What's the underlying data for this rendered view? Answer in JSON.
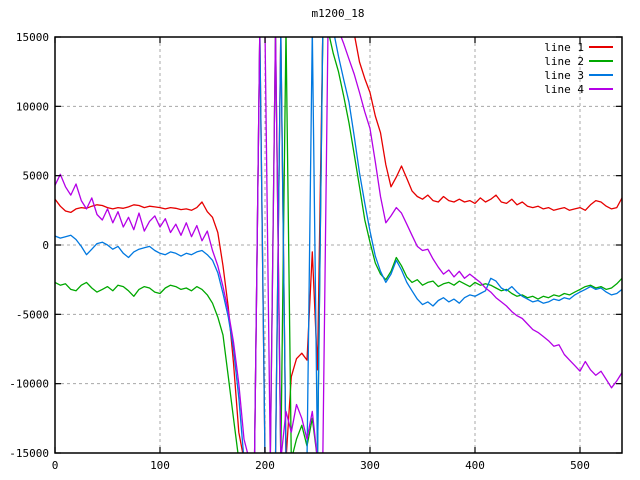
{
  "title": "m1200_18",
  "chart_data": {
    "type": "line",
    "title": "m1200_18",
    "xlabel": "",
    "ylabel": "",
    "x_range": [
      0,
      540
    ],
    "y_range": [
      -15000,
      15000
    ],
    "x_ticks": [
      0,
      100,
      200,
      300,
      400,
      500
    ],
    "y_ticks": [
      -15000,
      -10000,
      -5000,
      0,
      5000,
      10000,
      15000
    ],
    "grid": true,
    "grid_color": "#a8a8a8",
    "border_color": "#000000",
    "legend_position": "top-right-inside",
    "x_start": 0,
    "x_step": 5,
    "series": [
      {
        "name": "line 1",
        "color": "#e60000",
        "values": [
          3300,
          2800,
          2450,
          2350,
          2600,
          2700,
          2650,
          2800,
          2900,
          2850,
          2700,
          2600,
          2700,
          2650,
          2750,
          2900,
          2850,
          2700,
          2800,
          2750,
          2700,
          2600,
          2700,
          2650,
          2550,
          2600,
          2500,
          2700,
          3100,
          2400,
          2000,
          900,
          -1500,
          -4500,
          -8500,
          -13500,
          -15500,
          -15500,
          -15500,
          15500,
          -15500,
          -15500,
          -15500,
          15500,
          -15500,
          -9500,
          -8200,
          -7800,
          -8300,
          -500,
          -9000,
          15500,
          15500,
          15500,
          15500,
          15500,
          15500,
          15200,
          13200,
          12000,
          11000,
          9300,
          8100,
          5800,
          4200,
          4900,
          5700,
          4800,
          3900,
          3500,
          3300,
          3600,
          3200,
          3100,
          3500,
          3200,
          3100,
          3300,
          3100,
          3200,
          3000,
          3400,
          3100,
          3300,
          3600,
          3100,
          3000,
          3300,
          2900,
          3100,
          2800,
          2700,
          2800,
          2600,
          2700,
          2500,
          2600,
          2700,
          2500,
          2600,
          2700,
          2500,
          2900,
          3200,
          3100,
          2800,
          2600,
          2700,
          3400
        ]
      },
      {
        "name": "line 2",
        "color": "#00a800",
        "values": [
          -2700,
          -2900,
          -2800,
          -3200,
          -3300,
          -2900,
          -2700,
          -3100,
          -3400,
          -3200,
          -3000,
          -3300,
          -2900,
          -3000,
          -3300,
          -3700,
          -3200,
          -3000,
          -3100,
          -3400,
          -3500,
          -3100,
          -2900,
          -3000,
          -3200,
          -3100,
          -3300,
          -3000,
          -3200,
          -3600,
          -4200,
          -5200,
          -6500,
          -9500,
          -12500,
          -15500,
          -15500,
          -15500,
          -15500,
          -15500,
          -15500,
          -15500,
          15500,
          -15500,
          15500,
          -15500,
          -14000,
          -13000,
          -14500,
          -12500,
          -15500,
          15500,
          15500,
          13800,
          12500,
          10700,
          8800,
          6500,
          4200,
          1800,
          200,
          -1300,
          -2100,
          -2500,
          -1900,
          -900,
          -1500,
          -2300,
          -2700,
          -2500,
          -2900,
          -2700,
          -2600,
          -3000,
          -2800,
          -2700,
          -2900,
          -2600,
          -2800,
          -3000,
          -2700,
          -2900,
          -2800,
          -2900,
          -3100,
          -3300,
          -3200,
          -3500,
          -3700,
          -3600,
          -3800,
          -3700,
          -3900,
          -3700,
          -3800,
          -3600,
          -3700,
          -3500,
          -3600,
          -3400,
          -3200,
          -3000,
          -2900,
          -3100,
          -3000,
          -3200,
          -3100,
          -2800,
          -2400
        ]
      },
      {
        "name": "line 3",
        "color": "#0078e0",
        "values": [
          650,
          500,
          600,
          700,
          400,
          -100,
          -700,
          -300,
          100,
          200,
          0,
          -300,
          -100,
          -600,
          -900,
          -500,
          -300,
          -200,
          -100,
          -400,
          -600,
          -700,
          -500,
          -600,
          -800,
          -600,
          -700,
          -500,
          -400,
          -700,
          -1100,
          -2000,
          -3500,
          -5200,
          -7500,
          -11000,
          -15500,
          -15500,
          -15500,
          15500,
          -15500,
          -15500,
          -15500,
          15500,
          -15500,
          -15500,
          -15500,
          -15500,
          -15500,
          15500,
          -15500,
          15500,
          15500,
          15500,
          13600,
          11900,
          10300,
          7800,
          5200,
          3000,
          1000,
          -800,
          -1900,
          -2700,
          -2100,
          -1100,
          -1800,
          -2700,
          -3300,
          -3900,
          -4300,
          -4100,
          -4400,
          -4000,
          -3800,
          -4100,
          -3900,
          -4200,
          -3800,
          -3600,
          -3700,
          -3500,
          -3300,
          -2400,
          -2600,
          -3100,
          -3300,
          -3000,
          -3400,
          -3700,
          -3900,
          -4100,
          -4000,
          -4200,
          -4100,
          -3900,
          -4000,
          -3800,
          -3900,
          -3600,
          -3400,
          -3200,
          -3000,
          -3200,
          -3100,
          -3400,
          -3600,
          -3500,
          -3200
        ]
      },
      {
        "name": "line 4",
        "color": "#b400e6",
        "values": [
          4300,
          5100,
          4200,
          3600,
          4400,
          3200,
          2600,
          3400,
          2200,
          1800,
          2600,
          1600,
          2400,
          1300,
          2000,
          1100,
          2300,
          1000,
          1700,
          2100,
          1300,
          1900,
          900,
          1500,
          700,
          1600,
          600,
          1400,
          300,
          1000,
          -400,
          -1500,
          -3000,
          -4800,
          -7000,
          -10000,
          -14000,
          -15500,
          -15500,
          15500,
          15500,
          -15500,
          15500,
          -15500,
          -12000,
          -13500,
          -11500,
          -12500,
          -14000,
          -12000,
          -15500,
          -15500,
          15500,
          15500,
          15500,
          14500,
          13400,
          12300,
          11000,
          9600,
          8400,
          6000,
          3500,
          1600,
          2100,
          2700,
          2300,
          1500,
          700,
          -100,
          -400,
          -300,
          -1000,
          -1600,
          -2100,
          -1800,
          -2300,
          -1900,
          -2400,
          -2100,
          -2400,
          -2700,
          -3100,
          -3400,
          -3800,
          -4100,
          -4400,
          -4800,
          -5100,
          -5300,
          -5700,
          -6100,
          -6300,
          -6600,
          -6900,
          -7300,
          -7200,
          -7900,
          -8300,
          -8700,
          -9100,
          -8400,
          -9000,
          -9400,
          -9100,
          -9700,
          -10300,
          -9800,
          -9200
        ]
      }
    ]
  }
}
